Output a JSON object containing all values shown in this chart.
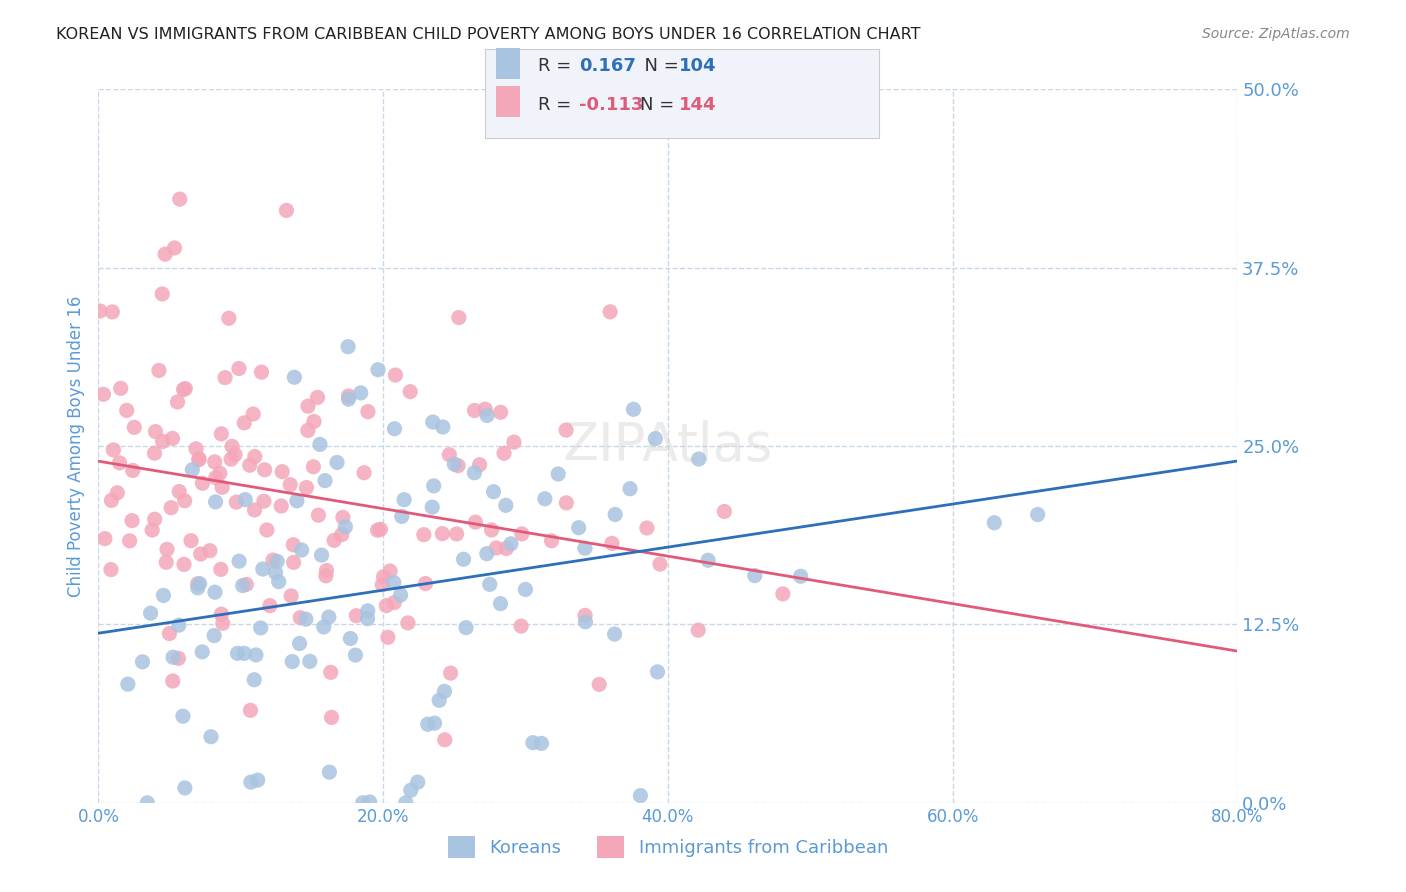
{
  "title": "KOREAN VS IMMIGRANTS FROM CARIBBEAN CHILD POVERTY AMONG BOYS UNDER 16 CORRELATION CHART",
  "source": "Source: ZipAtlas.com",
  "ylabel": "Child Poverty Among Boys Under 16",
  "xlabel_ticks": [
    "0.0%",
    "20.0%",
    "40.0%",
    "60.0%",
    "80.0%"
  ],
  "xlabel_vals": [
    0.0,
    0.2,
    0.4,
    0.6,
    0.8
  ],
  "ylabel_ticks": [
    "0.0%",
    "12.5%",
    "25.0%",
    "37.5%",
    "50.0%"
  ],
  "ylabel_vals": [
    0.0,
    0.125,
    0.25,
    0.375,
    0.5
  ],
  "xlim": [
    0.0,
    0.8
  ],
  "ylim": [
    0.0,
    0.5
  ],
  "korean_R": 0.167,
  "korean_N": 104,
  "caribbean_R": -0.113,
  "caribbean_N": 144,
  "korean_color": "#a8c4e0",
  "caribbean_color": "#f4a7b9",
  "korean_line_color": "#2e6fba",
  "caribbean_line_color": "#e05a7a",
  "legend_bg": "#f0f4fa",
  "watermark": "ZIPAtlas",
  "legend_korean_label": "Koreans",
  "legend_caribbean_label": "Immigrants from Caribbean",
  "title_color": "#222222",
  "axis_label_color": "#5b9bd5",
  "tick_label_color": "#5b9bd5",
  "grid_color": "#c8d8e8",
  "background_color": "#ffffff"
}
